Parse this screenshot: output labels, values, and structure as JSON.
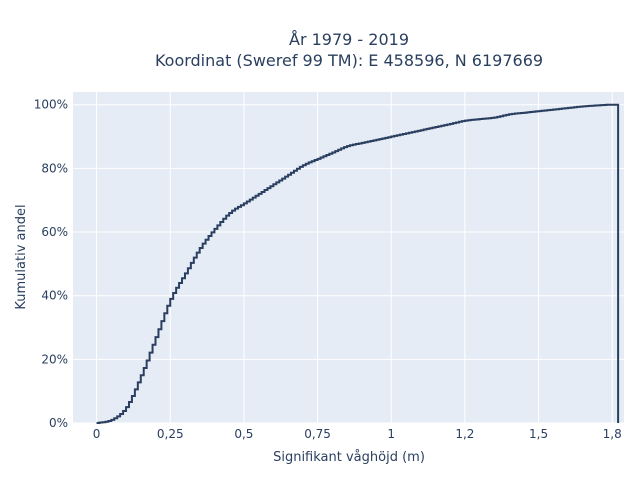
{
  "chart_data": {
    "type": "line",
    "line_shape": "step",
    "title_line1": "År 1979 - 2019",
    "title_line2": "Koordinat (Sweref 99 TM): E 458596, N 6197669",
    "xlabel": "Signifikant våghöjd (m)",
    "ylabel": "Kumulativ andel",
    "xlim": [
      -0.08,
      1.79
    ],
    "ylim": [
      0,
      1.04
    ],
    "x_ticks": [
      {
        "value": 0,
        "label": "0"
      },
      {
        "value": 0.25,
        "label": "0,25"
      },
      {
        "value": 0.5,
        "label": "0,5"
      },
      {
        "value": 0.75,
        "label": "0,75"
      },
      {
        "value": 1,
        "label": "1"
      },
      {
        "value": 1.25,
        "label": "1,2"
      },
      {
        "value": 1.5,
        "label": "1,5"
      },
      {
        "value": 1.75,
        "label": "1,8"
      }
    ],
    "y_ticks": [
      {
        "value": 0,
        "label": "0%"
      },
      {
        "value": 0.2,
        "label": "20%"
      },
      {
        "value": 0.4,
        "label": "40%"
      },
      {
        "value": 0.6,
        "label": "60%"
      },
      {
        "value": 0.8,
        "label": "80%"
      },
      {
        "value": 1.0,
        "label": "100%"
      }
    ],
    "grid": true,
    "colors": {
      "background": "#e5ecf6",
      "grid": "#ffffff",
      "line": "#2a3f5f",
      "text": "#2a3f5f"
    },
    "x": [
      0.0,
      0.05,
      0.1,
      0.15,
      0.2,
      0.25,
      0.3,
      0.35,
      0.4,
      0.45,
      0.5,
      0.55,
      0.6,
      0.65,
      0.7,
      0.75,
      0.8,
      0.85,
      0.9,
      0.95,
      1.0,
      1.05,
      1.1,
      1.15,
      1.2,
      1.25,
      1.3,
      1.35,
      1.4,
      1.45,
      1.5,
      1.55,
      1.6,
      1.65,
      1.7,
      1.74,
      1.77,
      1.78
    ],
    "y": [
      0.0,
      0.01,
      0.05,
      0.15,
      0.27,
      0.39,
      0.47,
      0.55,
      0.61,
      0.66,
      0.69,
      0.72,
      0.75,
      0.78,
      0.81,
      0.83,
      0.85,
      0.87,
      0.88,
      0.89,
      0.9,
      0.91,
      0.92,
      0.93,
      0.94,
      0.95,
      0.955,
      0.96,
      0.97,
      0.975,
      0.98,
      0.985,
      0.99,
      0.995,
      0.998,
      1.0,
      1.0,
      0.0
    ]
  }
}
